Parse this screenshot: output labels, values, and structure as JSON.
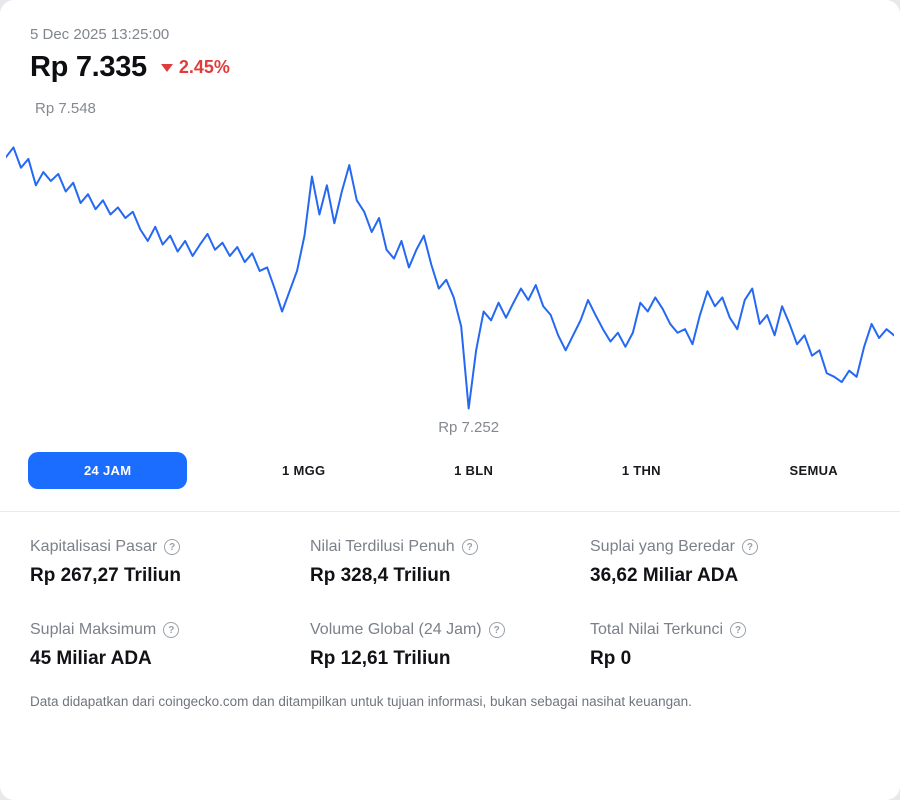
{
  "header": {
    "timestamp": "5 Dec 2025 13:25:00",
    "price": "Rp 7.335",
    "change": "2.45%",
    "change_direction": "down"
  },
  "chart_data": {
    "type": "line",
    "title": "24-hour price chart",
    "high_label": "Rp 7.548",
    "low_label": "Rp 7.252",
    "high": 7.548,
    "low": 7.252,
    "ylim": [
      7.23,
      7.57
    ],
    "line_color": "#2569f2",
    "grid": false,
    "legend": "none",
    "x_range": "24 hours ending 5 Dec 2025 13:25:00",
    "values": [
      7.537,
      7.548,
      7.525,
      7.535,
      7.505,
      7.52,
      7.51,
      7.518,
      7.498,
      7.508,
      7.485,
      7.495,
      7.478,
      7.488,
      7.472,
      7.48,
      7.468,
      7.475,
      7.455,
      7.442,
      7.458,
      7.438,
      7.448,
      7.43,
      7.442,
      7.425,
      7.438,
      7.45,
      7.432,
      7.44,
      7.425,
      7.435,
      7.418,
      7.428,
      7.408,
      7.412,
      7.388,
      7.362,
      7.385,
      7.408,
      7.448,
      7.515,
      7.472,
      7.505,
      7.462,
      7.498,
      7.528,
      7.488,
      7.475,
      7.452,
      7.468,
      7.432,
      7.422,
      7.442,
      7.412,
      7.432,
      7.448,
      7.415,
      7.388,
      7.398,
      7.378,
      7.345,
      7.252,
      7.318,
      7.362,
      7.352,
      7.372,
      7.355,
      7.372,
      7.388,
      7.375,
      7.392,
      7.368,
      7.358,
      7.335,
      7.318,
      7.335,
      7.352,
      7.375,
      7.358,
      7.342,
      7.328,
      7.338,
      7.322,
      7.338,
      7.372,
      7.362,
      7.378,
      7.365,
      7.348,
      7.338,
      7.342,
      7.325,
      7.358,
      7.385,
      7.368,
      7.378,
      7.355,
      7.342,
      7.375,
      7.388,
      7.348,
      7.358,
      7.335,
      7.368,
      7.348,
      7.325,
      7.335,
      7.312,
      7.318,
      7.292,
      7.288,
      7.282,
      7.295,
      7.288,
      7.322,
      7.348,
      7.332,
      7.342,
      7.335
    ]
  },
  "tabs": [
    {
      "label": "24 JAM",
      "selected": true
    },
    {
      "label": "1 MGG",
      "selected": false
    },
    {
      "label": "1 BLN",
      "selected": false
    },
    {
      "label": "1 THN",
      "selected": false
    },
    {
      "label": "SEMUA",
      "selected": false
    }
  ],
  "stats": {
    "items": [
      {
        "label": "Kapitalisasi Pasar",
        "value": "Rp 267,27 Triliun"
      },
      {
        "label": "Nilai Terdilusi Penuh",
        "value": "Rp 328,4 Triliun"
      },
      {
        "label": "Suplai yang Beredar",
        "value": "36,62 Miliar ADA"
      },
      {
        "label": "Suplai Maksimum",
        "value": "45 Miliar ADA"
      },
      {
        "label": "Volume Global (24 Jam)",
        "value": "Rp 12,61 Triliun"
      },
      {
        "label": "Total Nilai Terkunci",
        "value": "Rp 0"
      }
    ],
    "help_icon_glyph": "?"
  },
  "footer": {
    "disclaimer": "Data didapatkan dari coingecko.com dan ditampilkan untuk tujuan informasi, bukan sebagai nasihat keuangan."
  },
  "colors": {
    "accent_blue": "#1a6dff",
    "line_blue": "#2569f2",
    "down_red": "#e03c3c"
  }
}
